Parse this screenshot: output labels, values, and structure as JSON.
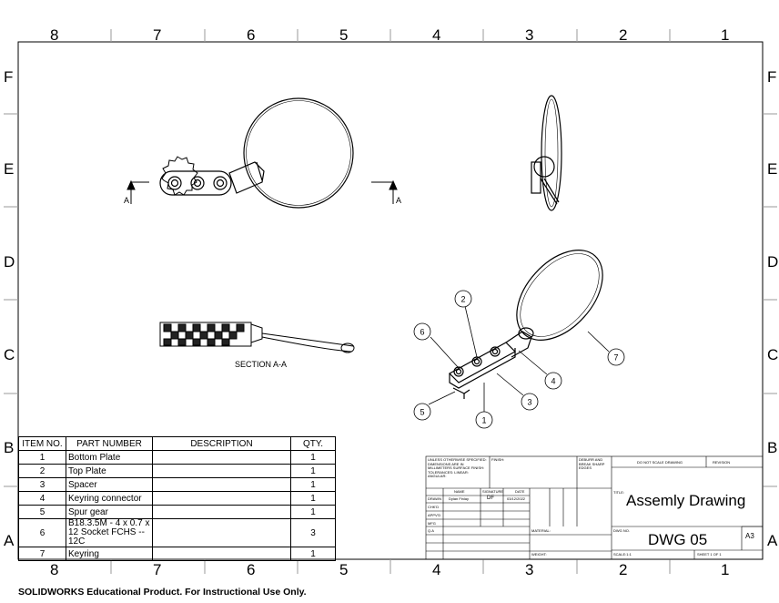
{
  "zones": {
    "columns": [
      "8",
      "7",
      "6",
      "5",
      "4",
      "3",
      "2",
      "1"
    ],
    "rows": [
      "F",
      "E",
      "D",
      "C",
      "B",
      "A"
    ]
  },
  "section": {
    "cut_label": "A",
    "view_label": "SECTION A-A"
  },
  "bom": {
    "headers": [
      "ITEM NO.",
      "PART NUMBER",
      "DESCRIPTION",
      "QTY."
    ],
    "rows": [
      {
        "item": "1",
        "part": "Bottom Plate",
        "desc": "",
        "qty": "1"
      },
      {
        "item": "2",
        "part": "Top Plate",
        "desc": "",
        "qty": "1"
      },
      {
        "item": "3",
        "part": "Spacer",
        "desc": "",
        "qty": "1"
      },
      {
        "item": "4",
        "part": "Keyring connector",
        "desc": "",
        "qty": "1"
      },
      {
        "item": "5",
        "part": "Spur gear",
        "desc": "",
        "qty": "1"
      },
      {
        "item": "6",
        "part": "B18.3.5M - 4 x 0.7 x 12 Socket FCHS -- 12C",
        "desc": "",
        "qty": "3"
      },
      {
        "item": "7",
        "part": "Keyring",
        "desc": "",
        "qty": "1"
      }
    ]
  },
  "balloons": [
    "1",
    "2",
    "3",
    "4",
    "5",
    "6",
    "7"
  ],
  "title_block": {
    "notes": "UNLESS OTHERWISE SPECIFIED: DIMENSIONS ARE IN MILLIMETERS SURFACE FINISH: TOLERANCES: LINEAR: ANGULAR:",
    "finish": "FINISH:",
    "deburr": "DEBURR AND BREAK SHARP EDGES",
    "do_not_scale": "DO NOT SCALE DRAWING",
    "revision": "REVISION",
    "name_hdr": "NAME",
    "signature_hdr": "SIGNATURE",
    "date_hdr": "DATE",
    "drawn": "DRAWN",
    "drawn_name": "Dylan Finlay",
    "drawn_sig": "DF",
    "drawn_date": "03/12/2022",
    "chkd": "CHK'D",
    "appvd": "APPV'D",
    "mfg": "MFG",
    "qa": "Q.A",
    "material": "MATERIAL:",
    "weight": "WEIGHT:",
    "title_label": "TITLE:",
    "title": "Assemly Drawing",
    "dwg_no_label": "DWG NO.",
    "dwg_no": "DWG 05",
    "size": "A3",
    "scale": "SCALE:1:1",
    "sheet": "SHEET 1 OF 1"
  },
  "footer": "SOLIDWORKS Educational Product. For Instructional Use Only."
}
